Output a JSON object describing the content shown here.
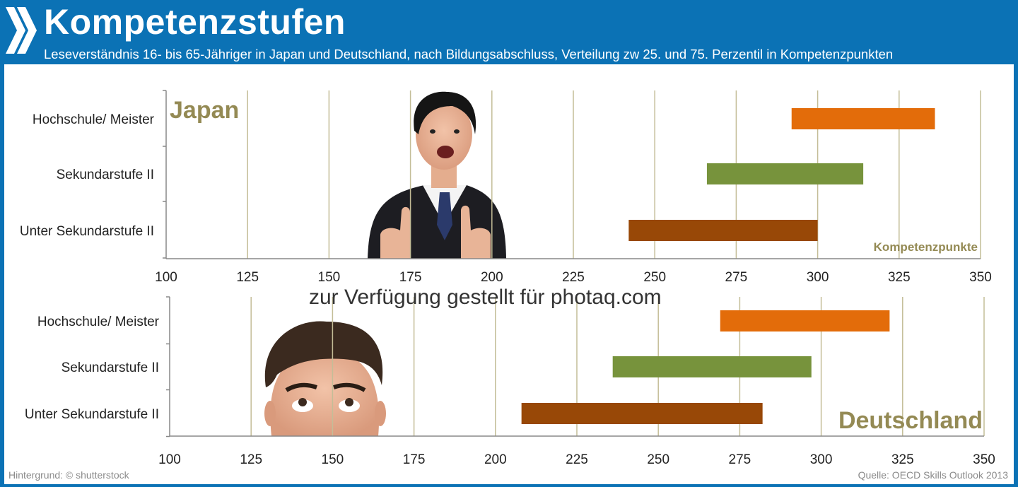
{
  "header": {
    "title": "Kompetenzstufen",
    "subtitle": "Leseverständnis 16- bis 65-Jähriger in Japan und Deutschland, nach Bildungsabschluss, Verteilung zw 25. und 75. Perzentil in Kompetenzpunkten"
  },
  "footer": {
    "background_credit": "Hintergrund: © shutterstock",
    "source": "Quelle: OECD Skills Outlook 2013"
  },
  "watermark": "zur Verfügung gestellt für photaq.com",
  "colors": {
    "header_bg": "#0b72b5",
    "hochschule": "#e36c0a",
    "sekundar": "#77933c",
    "unter": "#984807",
    "label_olive": "#948a54",
    "grid": "#c4bd97"
  },
  "chart_data": [
    {
      "type": "bar",
      "panel_label": "Japan",
      "xlabel": "Kompetenzpunkte",
      "xlim": [
        100,
        350
      ],
      "xticks": [
        "100",
        "125",
        "150",
        "175",
        "200",
        "225",
        "250",
        "275",
        "300",
        "325",
        "350"
      ],
      "grid": true,
      "categories": [
        "Hochschule/ Meister",
        "Sekundarstufe II",
        "Unter Sekundarstufe II"
      ],
      "ranges": [
        [
          292,
          336
        ],
        [
          266,
          314
        ],
        [
          242,
          300
        ]
      ],
      "image": "japanese-businessman-thumbs-up"
    },
    {
      "type": "bar",
      "panel_label": "Deutschland",
      "xlabel": "",
      "xlim": [
        100,
        350
      ],
      "xticks": [
        "100",
        "125",
        "150",
        "175",
        "200",
        "225",
        "250",
        "275",
        "300",
        "325",
        "350"
      ],
      "grid": true,
      "categories": [
        "Hochschule/ Meister",
        "Sekundarstufe II",
        "Unter Sekundarstufe II"
      ],
      "ranges": [
        [
          269,
          321
        ],
        [
          236,
          297
        ],
        [
          208,
          282
        ]
      ],
      "image": "german-man-looking-up"
    }
  ]
}
